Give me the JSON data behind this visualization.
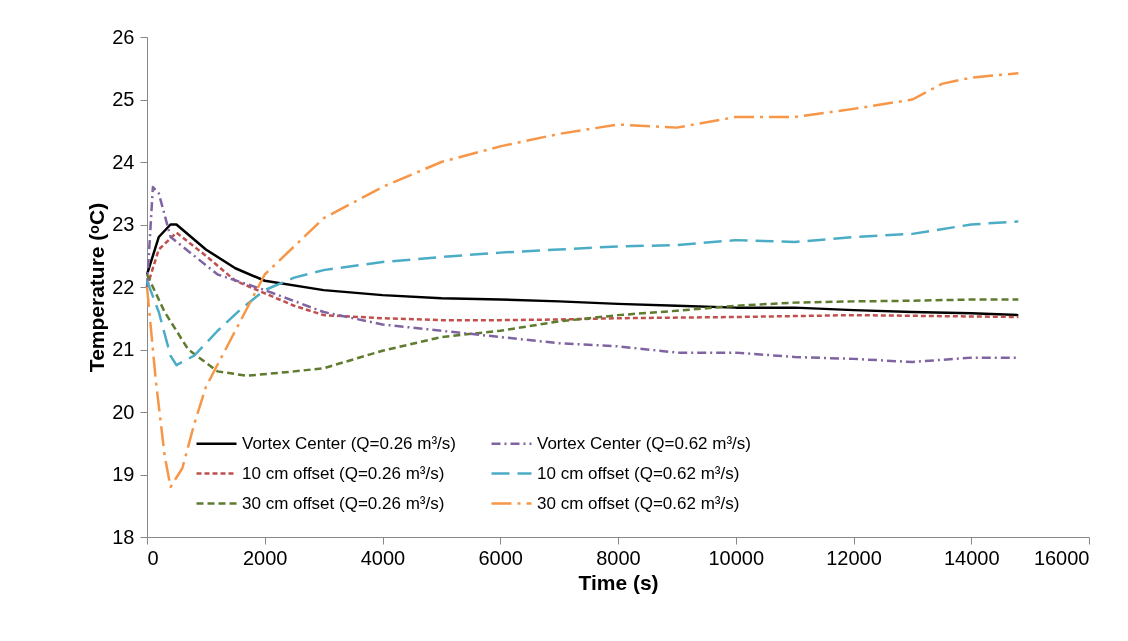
{
  "chart_data": {
    "type": "line",
    "xlabel": "Time (s)",
    "ylabel": "Temperature (ᵒC)",
    "xlim": [
      0,
      16000
    ],
    "xticks": [
      0,
      2000,
      4000,
      6000,
      8000,
      10000,
      12000,
      14000,
      16000
    ],
    "ylim": [
      18,
      26
    ],
    "yticks": [
      18,
      19,
      20,
      21,
      22,
      23,
      24,
      25,
      26
    ],
    "grid": false,
    "legend": "bottom",
    "marker": "none",
    "series": [
      {
        "name": "Vortex Center (Q=0.26 m³/s)",
        "color": "#000000",
        "line_style": "solid",
        "x": [
          0,
          200,
          400,
          500,
          1000,
          1500,
          2000,
          3000,
          4000,
          5000,
          6000,
          7000,
          8000,
          9000,
          10000,
          11000,
          12000,
          13000,
          14000,
          14800
        ],
        "values": [
          22.2,
          22.8,
          23.0,
          23.0,
          22.6,
          22.3,
          22.1,
          21.95,
          21.87,
          21.82,
          21.8,
          21.77,
          21.73,
          21.7,
          21.67,
          21.67,
          21.63,
          21.6,
          21.58,
          21.55
        ]
      },
      {
        "name": "10 cm offset (Q=0.26 m³/s)",
        "color": "#c0504d",
        "line_style": "dotted",
        "x": [
          0,
          200,
          500,
          1000,
          1500,
          2000,
          2500,
          3000,
          4000,
          5000,
          6000,
          7000,
          8000,
          10000,
          12000,
          14800
        ],
        "values": [
          22.0,
          22.6,
          22.87,
          22.5,
          22.1,
          21.9,
          21.7,
          21.55,
          21.5,
          21.47,
          21.47,
          21.48,
          21.5,
          21.52,
          21.55,
          21.52
        ]
      },
      {
        "name": "30 cm offset (Q=0.26 m³/s)",
        "color": "#5e7b2e",
        "line_style": "dashed",
        "x": [
          0,
          300,
          700,
          1200,
          1700,
          2500,
          3000,
          4000,
          5000,
          6000,
          7000,
          8000,
          9000,
          10000,
          11000,
          12000,
          13000,
          14000,
          14800
        ],
        "values": [
          22.2,
          21.6,
          21.0,
          20.65,
          20.58,
          20.65,
          20.7,
          20.98,
          21.2,
          21.3,
          21.45,
          21.55,
          21.62,
          21.7,
          21.75,
          21.77,
          21.78,
          21.8,
          21.8
        ]
      },
      {
        "name": "Vortex Center (Q=0.62 m³/s)",
        "color": "#8064a2",
        "line_style": "dashdot",
        "x": [
          0,
          100,
          200,
          400,
          800,
          1200,
          2000,
          3000,
          4000,
          5000,
          6000,
          7000,
          8000,
          9000,
          10000,
          11000,
          12000,
          13000,
          14000,
          14800
        ],
        "values": [
          22.0,
          23.6,
          23.5,
          22.8,
          22.5,
          22.2,
          21.95,
          21.6,
          21.4,
          21.3,
          21.2,
          21.1,
          21.05,
          20.95,
          20.95,
          20.88,
          20.85,
          20.8,
          20.87,
          20.87
        ]
      },
      {
        "name": "10 cm offset (Q=0.62 m³/s)",
        "color": "#4bacc6",
        "line_style": "longdash",
        "x": [
          0,
          200,
          400,
          500,
          800,
          1200,
          1600,
          2000,
          2500,
          3000,
          4000,
          5000,
          6000,
          7000,
          8000,
          9000,
          10000,
          11000,
          12000,
          13000,
          14000,
          14800
        ],
        "values": [
          22.1,
          21.6,
          20.9,
          20.75,
          20.9,
          21.3,
          21.65,
          21.95,
          22.15,
          22.27,
          22.4,
          22.48,
          22.55,
          22.6,
          22.65,
          22.67,
          22.75,
          22.72,
          22.8,
          22.85,
          23.0,
          23.05
        ]
      },
      {
        "name": "30 cm offset (Q=0.62 m³/s)",
        "color": "#f79646",
        "line_style": "longdashdot",
        "x": [
          0,
          150,
          300,
          400,
          600,
          800,
          1000,
          1500,
          2000,
          3000,
          4000,
          5000,
          6000,
          7000,
          8000,
          9000,
          10000,
          11000,
          12000,
          13000,
          13500,
          14000,
          14800
        ],
        "values": [
          22.0,
          20.5,
          19.3,
          18.8,
          19.1,
          19.8,
          20.4,
          21.3,
          22.2,
          23.1,
          23.6,
          24.0,
          24.25,
          24.45,
          24.6,
          24.55,
          24.72,
          24.72,
          24.85,
          25.0,
          25.25,
          25.35,
          25.42
        ]
      }
    ]
  }
}
